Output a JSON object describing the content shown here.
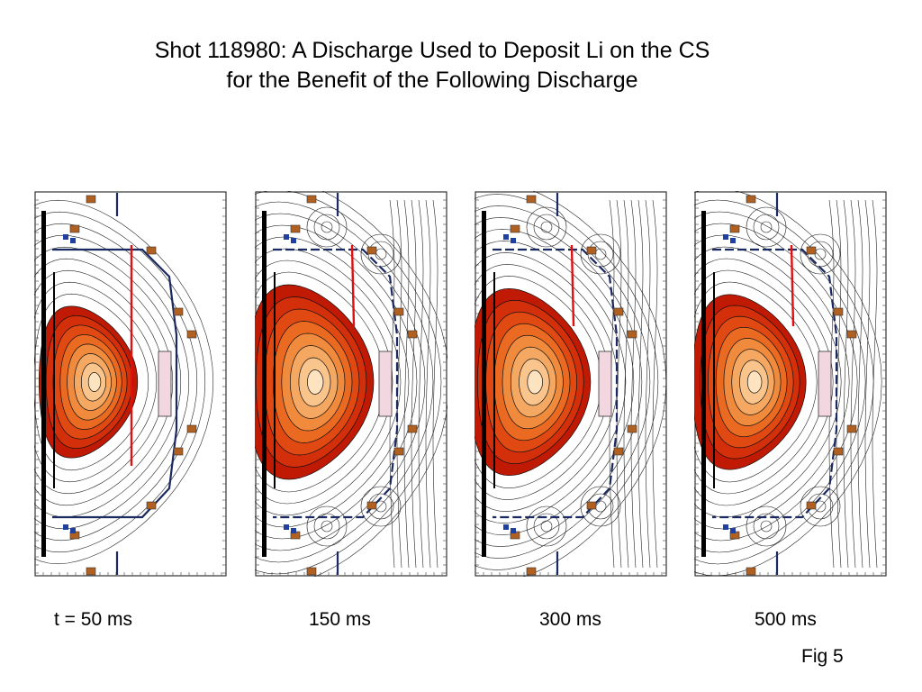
{
  "title": {
    "line1": "Shot 118980: A Discharge Used to Deposit Li on the CS",
    "line2": "for the Benefit of the Following Discharge"
  },
  "panels": [
    {
      "time_label": "t = 50 ms",
      "plasma_scale": 0.78
    },
    {
      "time_label": "150 ms",
      "plasma_scale": 1.0
    },
    {
      "time_label": "300 ms",
      "plasma_scale": 0.96
    },
    {
      "time_label": "500 ms",
      "plasma_scale": 0.9
    }
  ],
  "fig_label": "Fig 5",
  "colors": {
    "contour_levels": [
      "#c01a05",
      "#d32f0a",
      "#e04a12",
      "#ea6a22",
      "#f08a3c",
      "#f5a862",
      "#f9c58c",
      "#fde3c0"
    ],
    "red_line": "#e01010",
    "wall": "#1a2a60",
    "field_line": "#222222",
    "coil": "#b06020"
  }
}
